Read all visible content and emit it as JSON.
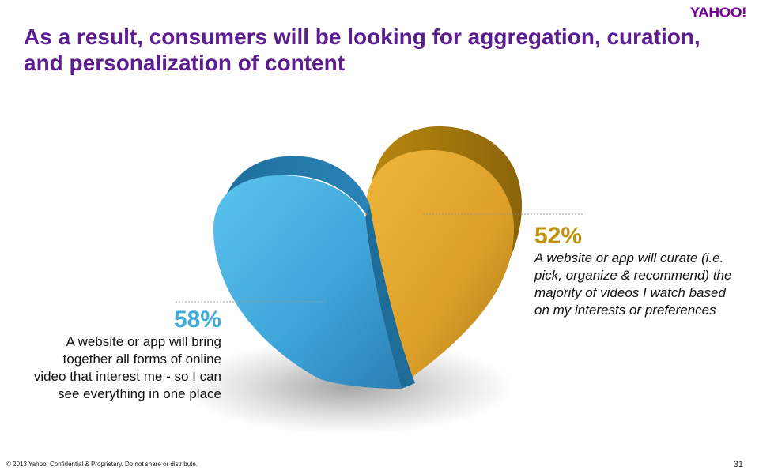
{
  "brand": {
    "logo_text": "YAHOO!",
    "purple": "#5c1d8f"
  },
  "slide": {
    "title": "As a result, consumers will be looking for aggregation, curation, and personalization of content"
  },
  "stats": {
    "left": {
      "percent": "58%",
      "value": 58,
      "color": "#42aad9",
      "description": "A website or app will bring together all forms of online video that interest me - so I can see everything in one place"
    },
    "right": {
      "percent": "52%",
      "value": 52,
      "color": "#e3a623",
      "description": "A website or app will curate (i.e. pick, organize & recommend) the majority of videos I watch based on my interests or preferences"
    }
  },
  "footer": {
    "copyright": "© 2013 Yahoo.  Confidential & Proprietary.  Do not share or distribute.",
    "page_number": "31"
  }
}
